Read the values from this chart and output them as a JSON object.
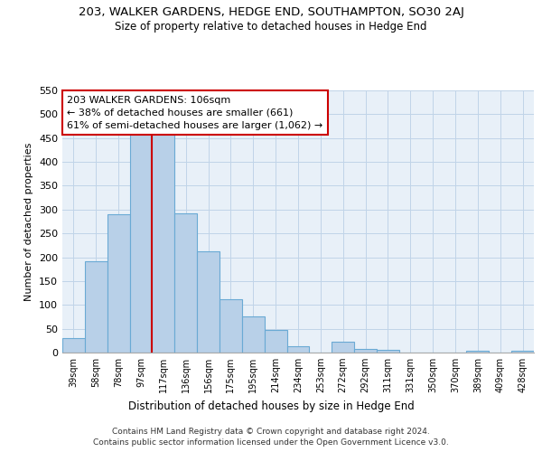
{
  "title": "203, WALKER GARDENS, HEDGE END, SOUTHAMPTON, SO30 2AJ",
  "subtitle": "Size of property relative to detached houses in Hedge End",
  "xlabel": "Distribution of detached houses by size in Hedge End",
  "ylabel": "Number of detached properties",
  "bar_labels": [
    "39sqm",
    "58sqm",
    "78sqm",
    "97sqm",
    "117sqm",
    "136sqm",
    "156sqm",
    "175sqm",
    "195sqm",
    "214sqm",
    "234sqm",
    "253sqm",
    "272sqm",
    "292sqm",
    "311sqm",
    "331sqm",
    "350sqm",
    "370sqm",
    "389sqm",
    "409sqm",
    "428sqm"
  ],
  "bar_values": [
    30,
    192,
    290,
    460,
    460,
    293,
    212,
    111,
    75,
    47,
    13,
    0,
    22,
    8,
    5,
    0,
    0,
    0,
    3,
    0,
    3
  ],
  "bar_color": "#b8d0e8",
  "bar_edge_color": "#6aaad4",
  "vline_x": 3.5,
  "vline_color": "#cc0000",
  "annotation_line1": "203 WALKER GARDENS: 106sqm",
  "annotation_line2": "← 38% of detached houses are smaller (661)",
  "annotation_line3": "61% of semi-detached houses are larger (1,062) →",
  "annotation_box_color": "#ffffff",
  "annotation_box_edge": "#cc0000",
  "ylim": [
    0,
    550
  ],
  "yticks": [
    0,
    50,
    100,
    150,
    200,
    250,
    300,
    350,
    400,
    450,
    500,
    550
  ],
  "grid_color": "#c0d4e8",
  "background_color": "#e8f0f8",
  "footer1": "Contains HM Land Registry data © Crown copyright and database right 2024.",
  "footer2": "Contains public sector information licensed under the Open Government Licence v3.0."
}
